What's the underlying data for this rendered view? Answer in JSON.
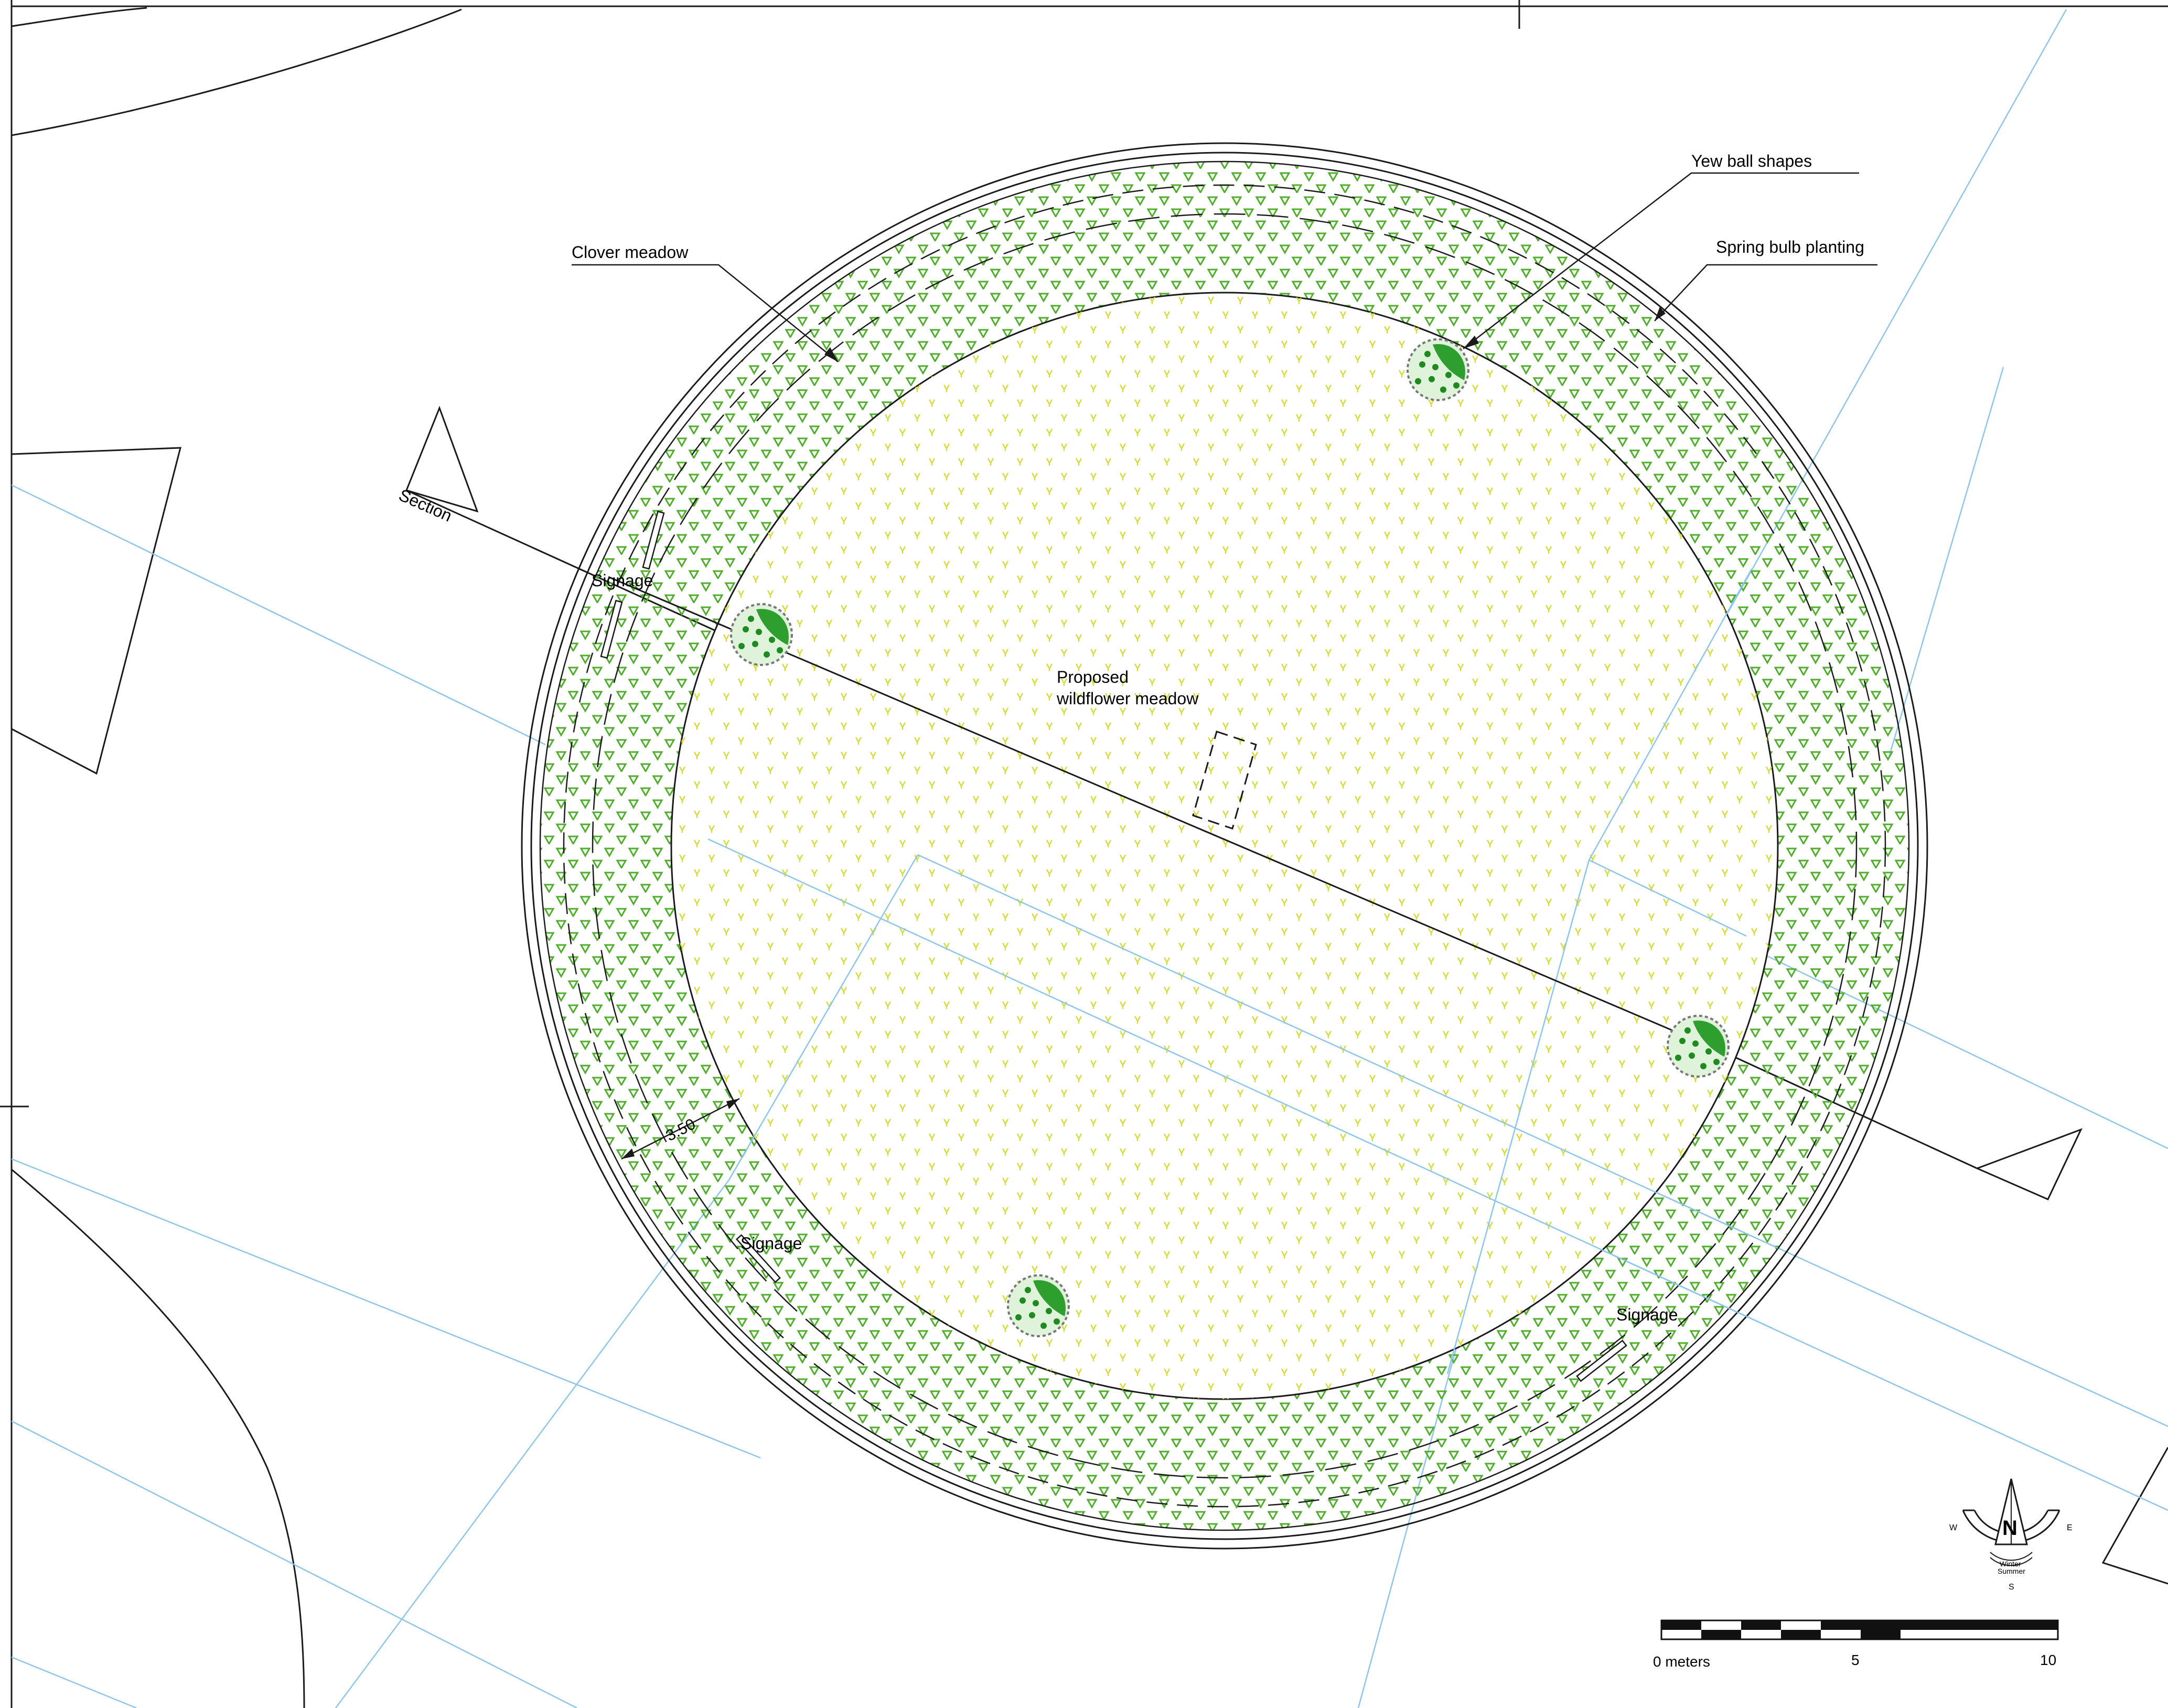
{
  "labels": {
    "yew_ball_shapes": "Yew ball shapes",
    "spring_bulb_planting": "Spring bulb planting",
    "clover_meadow": "Clover meadow",
    "section": "Section",
    "signage_1": "Signage",
    "signage_2": "Signage",
    "signage_3": "Signage",
    "proposed_line1": "Proposed",
    "proposed_line2": "wildflower meadow",
    "dimension": "3.50"
  },
  "north_arrow": {
    "north": "N",
    "west": "W",
    "east": "E",
    "south": "S",
    "winter": "Winter",
    "summer": "Summer"
  },
  "scale_bar": {
    "label_0": "0 meters",
    "label_5": "5",
    "label_10": "10"
  },
  "colors": {
    "linework": "#1a1a1a",
    "light_blue": "#8ec5ea",
    "clover_green": "#4fae2a",
    "wildflower_yellow": "#d6dc3a",
    "yew_green": "#2e9e2e",
    "yew_dark": "#0f6a12"
  }
}
